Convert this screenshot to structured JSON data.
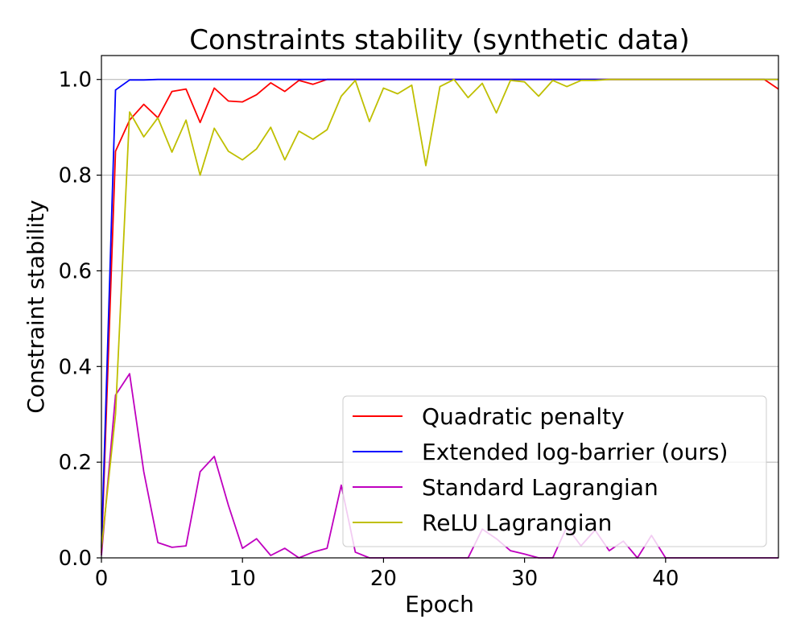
{
  "chart_data": {
    "type": "line",
    "title": "Constraints stability (synthetic data)",
    "xlabel": "Epoch",
    "ylabel": "Constraint stability",
    "xlim": [
      0,
      48
    ],
    "ylim": [
      0,
      1.05
    ],
    "xticks": [
      0,
      10,
      20,
      30,
      40
    ],
    "yticks": [
      0.0,
      0.2,
      0.4,
      0.6,
      0.8,
      1.0
    ],
    "xtick_labels": [
      "0",
      "10",
      "20",
      "30",
      "40"
    ],
    "ytick_labels": [
      "0.0",
      "0.2",
      "0.4",
      "0.6",
      "0.8",
      "1.0"
    ],
    "grid": "y",
    "legend": "lower-right",
    "series": [
      {
        "name": "Quadratic penalty",
        "color": "#ff0000",
        "x": [
          0,
          1,
          2,
          3,
          4,
          5,
          6,
          7,
          8,
          9,
          10,
          11,
          12,
          13,
          14,
          15,
          16,
          17,
          18,
          19,
          20,
          21,
          22,
          23,
          24,
          25,
          26,
          27,
          28,
          29,
          30,
          31,
          32,
          33,
          34,
          35,
          36,
          37,
          38,
          39,
          40,
          41,
          42,
          43,
          44,
          45,
          46,
          47,
          48
        ],
        "y": [
          0.01,
          0.85,
          0.915,
          0.948,
          0.92,
          0.975,
          0.98,
          0.91,
          0.982,
          0.955,
          0.953,
          0.968,
          0.993,
          0.975,
          0.998,
          0.99,
          1.0,
          1.0,
          1.0,
          1.0,
          1.0,
          1.0,
          1.0,
          1.0,
          1.0,
          1.0,
          1.0,
          1.0,
          1.0,
          1.0,
          1.0,
          1.0,
          1.0,
          1.0,
          1.0,
          1.0,
          1.0,
          1.0,
          1.0,
          1.0,
          1.0,
          1.0,
          1.0,
          1.0,
          1.0,
          1.0,
          1.0,
          1.0,
          0.98
        ]
      },
      {
        "name": "Extended log-barrier (ours)",
        "color": "#0000ff",
        "x": [
          0,
          1,
          2,
          3,
          4,
          5,
          6,
          7,
          8,
          9,
          10,
          11,
          12,
          13,
          14,
          15,
          16,
          17,
          18,
          19,
          20,
          21,
          22,
          23,
          24,
          25,
          26,
          27,
          28,
          29,
          30,
          31,
          32,
          33,
          34,
          35,
          36,
          37,
          38,
          39,
          40,
          41,
          42,
          43,
          44,
          45,
          46,
          47,
          48
        ],
        "y": [
          0.02,
          0.978,
          0.999,
          0.999,
          1.0,
          1.0,
          1.0,
          1.0,
          1.0,
          1.0,
          1.0,
          1.0,
          1.0,
          1.0,
          1.0,
          1.0,
          1.0,
          1.0,
          1.0,
          1.0,
          1.0,
          1.0,
          1.0,
          1.0,
          1.0,
          1.0,
          1.0,
          1.0,
          1.0,
          1.0,
          1.0,
          1.0,
          1.0,
          1.0,
          1.0,
          1.0,
          1.0,
          1.0,
          1.0,
          1.0,
          1.0,
          1.0,
          1.0,
          1.0,
          1.0,
          1.0,
          1.0,
          1.0,
          1.0
        ]
      },
      {
        "name": "Standard Lagrangian",
        "color": "#bf00bf",
        "x": [
          0,
          1,
          2,
          3,
          4,
          5,
          6,
          7,
          8,
          9,
          10,
          11,
          12,
          13,
          14,
          15,
          16,
          17,
          18,
          19,
          20,
          21,
          22,
          23,
          24,
          25,
          26,
          27,
          28,
          29,
          30,
          31,
          32,
          33,
          34,
          35,
          36,
          37,
          38,
          39,
          40,
          41,
          42,
          43,
          44,
          45,
          46,
          47,
          48
        ],
        "y": [
          0.005,
          0.34,
          0.385,
          0.18,
          0.032,
          0.022,
          0.025,
          0.18,
          0.212,
          0.11,
          0.02,
          0.04,
          0.005,
          0.02,
          0.0,
          0.012,
          0.02,
          0.152,
          0.012,
          0.0,
          0.0,
          0.0,
          0.0,
          0.0,
          0.0,
          0.0,
          0.0,
          0.06,
          0.04,
          0.015,
          0.008,
          0.0,
          0.0,
          0.065,
          0.025,
          0.058,
          0.015,
          0.035,
          0.0,
          0.047,
          0.0,
          0.0,
          0.0,
          0.0,
          0.0,
          0.0,
          0.0,
          0.0,
          0.0
        ]
      },
      {
        "name": "ReLU Lagrangian",
        "color": "#bfbf00",
        "x": [
          0,
          1,
          2,
          3,
          4,
          5,
          6,
          7,
          8,
          9,
          10,
          11,
          12,
          13,
          14,
          15,
          16,
          17,
          18,
          19,
          20,
          21,
          22,
          23,
          24,
          25,
          26,
          27,
          28,
          29,
          30,
          31,
          32,
          33,
          34,
          35,
          36,
          37,
          38,
          39,
          40,
          41,
          42,
          43,
          44,
          45,
          46,
          47,
          48
        ],
        "y": [
          0.02,
          0.3,
          0.932,
          0.88,
          0.92,
          0.848,
          0.915,
          0.8,
          0.898,
          0.85,
          0.832,
          0.855,
          0.9,
          0.832,
          0.892,
          0.875,
          0.895,
          0.965,
          0.998,
          0.912,
          0.982,
          0.97,
          0.988,
          0.82,
          0.985,
          1.0,
          0.962,
          0.992,
          0.93,
          0.998,
          0.995,
          0.965,
          0.998,
          0.985,
          0.998,
          0.998,
          1.0,
          1.0,
          1.0,
          1.0,
          1.0,
          1.0,
          1.0,
          1.0,
          1.0,
          1.0,
          1.0,
          1.0,
          1.0
        ]
      }
    ]
  }
}
